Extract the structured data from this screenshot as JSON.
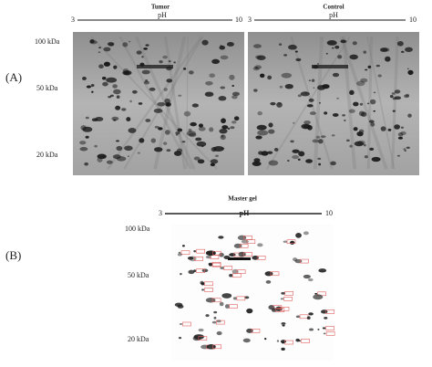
{
  "panels": [
    {
      "label": "(A)",
      "mw_markers": [
        "100 kDa",
        "50 kDa",
        "20 kDa"
      ],
      "gels": [
        {
          "title": "Tumor",
          "ph_start": "3",
          "ph_label": "pH",
          "ph_end": "10"
        },
        {
          "title": "Control",
          "ph_start": "3",
          "ph_label": "pH",
          "ph_end": "10"
        }
      ]
    },
    {
      "label": "(B)",
      "mw_markers": [
        "100 kDa",
        "50 kDa",
        "20 kDa"
      ],
      "gels": [
        {
          "title": "Master gel",
          "ph_start": "3",
          "ph_label": "pH",
          "ph_end": "10"
        }
      ]
    }
  ]
}
